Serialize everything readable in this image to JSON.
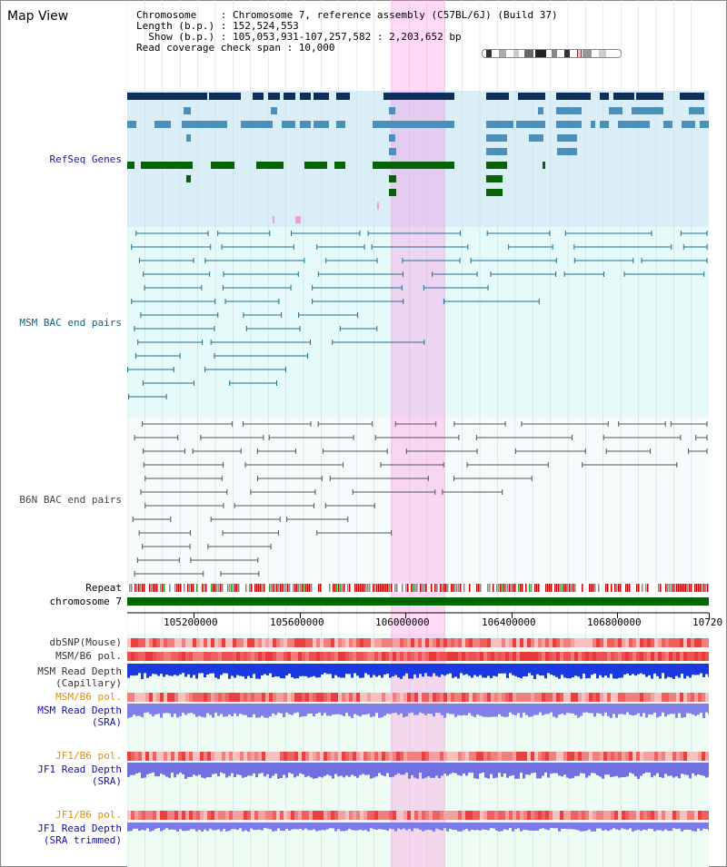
{
  "title": "Map View",
  "info": {
    "chromosome": "Chromosome    : Chromosome 7, reference assembly (C57BL/6J) (Build 37)",
    "length": "Length (b.p.) : 152,524,553",
    "show": "  Show (b.p.) : 105,053,931-107,257,582 : 2,203,652 bp",
    "coverage": "Read coverage check span : 10,000"
  },
  "tracks": {
    "refseq": "RefSeq Genes",
    "msm_bac": "MSM BAC end pairs",
    "b6n_bac": "B6N BAC end pairs",
    "repeat": "Repeat",
    "chromosome": "chromosome 7",
    "dbsnp": "dbSNP(Mouse)",
    "msm_b6_pol_1": "MSM/B6 pol.",
    "msm_depth_cap_1": "MSM Read Depth",
    "msm_depth_cap_2": "(Capillary)",
    "msm_b6_pol_2": "MSM/B6 pol.",
    "msm_depth_sra_1": "MSM Read Depth",
    "msm_depth_sra_2": "(SRA)",
    "jf1_b6_pol_1": "JF1/B6 pol.",
    "jf1_depth_1": "JF1 Read Depth",
    "jf1_depth_2": "(SRA)",
    "jf1_b6_pol_2": "JF1/B6 pol.",
    "jf1_depth_trim_1": "JF1 Read Depth",
    "jf1_depth_trim_2": "(SRA trimmed)"
  },
  "axis_ticks": [
    "105200000",
    "105600000",
    "106000000",
    "106400000",
    "106800000",
    "10720"
  ],
  "colors": {
    "refseq_bg": "#daeef8",
    "msm_bg": "#e6fafa",
    "b6n_bg": "#f4fafa",
    "highlight": "#f8c8f0",
    "chromosome_bar": "#006600",
    "refseq_label": "#1a1aa0",
    "msm_label": "#136080",
    "b6n_label": "#444444",
    "pol_label": "#e09000",
    "depth_label": "#1010a0"
  }
}
